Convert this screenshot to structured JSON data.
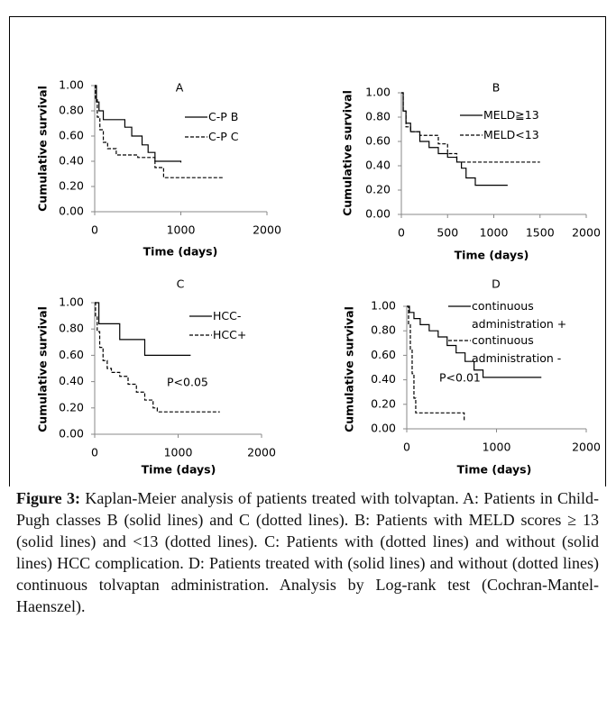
{
  "chart_data": [
    {
      "type": "line",
      "title": "A",
      "xlabel": "Time (days)",
      "ylabel": "Cumulative survival",
      "xlim": [
        0,
        2000
      ],
      "xticks": [
        0,
        1000,
        2000
      ],
      "ylim": [
        0,
        1
      ],
      "yticks": [
        {
          "value": 0,
          "label": "0.00"
        },
        {
          "value": 0.2,
          "label": "0.20"
        },
        {
          "value": 0.4,
          "label": "0.40"
        },
        {
          "value": 0.6,
          "label": "0.60"
        },
        {
          "value": 0.8,
          "label": "0.80"
        },
        {
          "value": 1,
          "label": "1.00"
        }
      ],
      "series": [
        {
          "name": "C-P B",
          "color": "#000000",
          "style": "solid",
          "x": [
            0,
            20,
            50,
            100,
            350,
            430,
            550,
            620,
            700,
            1000
          ],
          "values": [
            1,
            0.87,
            0.8,
            0.73,
            0.67,
            0.6,
            0.53,
            0.47,
            0.4,
            0.39
          ]
        },
        {
          "name": "C-P C",
          "color": "#000000",
          "style": "dashed",
          "x": [
            0,
            10,
            30,
            60,
            100,
            150,
            250,
            500,
            700,
            800,
            1500
          ],
          "values": [
            1,
            0.9,
            0.75,
            0.65,
            0.55,
            0.5,
            0.45,
            0.43,
            0.35,
            0.27,
            0.27
          ]
        }
      ]
    },
    {
      "type": "line",
      "title": "B",
      "xlabel": "Time (days)",
      "ylabel": "Cumulative survival",
      "xlim": [
        0,
        2000
      ],
      "xticks": [
        0,
        500,
        1000,
        1500,
        2000
      ],
      "ylim": [
        0,
        1
      ],
      "yticks": [
        {
          "value": 0,
          "label": "0.00"
        },
        {
          "value": 0.2,
          "label": "0.20"
        },
        {
          "value": 0.4,
          "label": "0.40"
        },
        {
          "value": 0.6,
          "label": "0.60"
        },
        {
          "value": 0.8,
          "label": "0.80"
        },
        {
          "value": 1,
          "label": "1.00"
        }
      ],
      "series": [
        {
          "name": "MELD≧13",
          "color": "#000000",
          "style": "solid",
          "x": [
            0,
            20,
            50,
            100,
            200,
            300,
            400,
            500,
            600,
            650,
            700,
            800,
            1150
          ],
          "values": [
            1,
            0.85,
            0.75,
            0.68,
            0.6,
            0.55,
            0.5,
            0.47,
            0.43,
            0.38,
            0.3,
            0.24,
            0.24
          ]
        },
        {
          "name": "MELD<13",
          "color": "#000000",
          "style": "dashed",
          "x": [
            0,
            20,
            50,
            100,
            200,
            400,
            500,
            600,
            1500
          ],
          "values": [
            1,
            0.85,
            0.72,
            0.68,
            0.65,
            0.58,
            0.5,
            0.43,
            0.43
          ]
        }
      ]
    },
    {
      "type": "line",
      "title": "C",
      "xlabel": "Time (days)",
      "ylabel": "Cumulative survival",
      "annotation": "P<0.05",
      "xlim": [
        0,
        2000
      ],
      "xticks": [
        0,
        1000,
        2000
      ],
      "ylim": [
        0,
        1
      ],
      "yticks": [
        {
          "value": 0,
          "label": "0.00"
        },
        {
          "value": 0.2,
          "label": "0.20"
        },
        {
          "value": 0.4,
          "label": "0.40"
        },
        {
          "value": 0.6,
          "label": "0.60"
        },
        {
          "value": 0.8,
          "label": "0.80"
        },
        {
          "value": 1,
          "label": "1.00"
        }
      ],
      "series": [
        {
          "name": "HCC-",
          "color": "#000000",
          "style": "solid",
          "x": [
            0,
            50,
            300,
            600,
            1150
          ],
          "values": [
            1,
            0.84,
            0.72,
            0.6,
            0.6
          ]
        },
        {
          "name": "HCC+",
          "color": "#000000",
          "style": "dashed",
          "x": [
            0,
            10,
            30,
            60,
            100,
            150,
            200,
            300,
            400,
            500,
            600,
            700,
            750,
            1500
          ],
          "values": [
            1,
            0.9,
            0.78,
            0.66,
            0.56,
            0.5,
            0.47,
            0.44,
            0.38,
            0.32,
            0.26,
            0.2,
            0.17,
            0.17
          ]
        }
      ]
    },
    {
      "type": "line",
      "title": "D",
      "xlabel": "Time (days)",
      "ylabel": "Cumulative survival",
      "annotation": "P<0.01",
      "xlim": [
        0,
        2000
      ],
      "xticks": [
        0,
        1000,
        2000
      ],
      "ylim": [
        0,
        1
      ],
      "yticks": [
        {
          "value": 0,
          "label": "0.00"
        },
        {
          "value": 0.2,
          "label": "0.20"
        },
        {
          "value": 0.4,
          "label": "0.40"
        },
        {
          "value": 0.6,
          "label": "0.60"
        },
        {
          "value": 0.8,
          "label": "0.80"
        },
        {
          "value": 1,
          "label": "1.00"
        }
      ],
      "series": [
        {
          "name": "continuous administration +",
          "color": "#000000",
          "style": "solid",
          "x": [
            0,
            30,
            80,
            150,
            250,
            350,
            450,
            550,
            650,
            750,
            850,
            1500
          ],
          "values": [
            1,
            0.95,
            0.9,
            0.85,
            0.8,
            0.75,
            0.68,
            0.62,
            0.55,
            0.48,
            0.42,
            0.42
          ]
        },
        {
          "name": "continuous administration -",
          "color": "#000000",
          "style": "dashed",
          "x": [
            0,
            20,
            40,
            60,
            80,
            100,
            620,
            640
          ],
          "values": [
            1,
            0.85,
            0.65,
            0.45,
            0.25,
            0.13,
            0.13,
            0.06
          ]
        }
      ]
    }
  ],
  "caption": {
    "label": "Figure 3:",
    "text": "Kaplan-Meier analysis of patients treated with tolvaptan. A: Patients in Child-Pugh classes B (solid lines) and C (dotted lines). B: Patients with MELD scores ≥ 13 (solid lines) and <13 (dotted lines). C: Patients with (dotted lines) and without (solid lines) HCC complication. D: Patients treated with (solid lines) and without (dotted lines) continuous tolvaptan administration. Analysis by Log-rank test (Cochran-Mantel-Haenszel)."
  }
}
